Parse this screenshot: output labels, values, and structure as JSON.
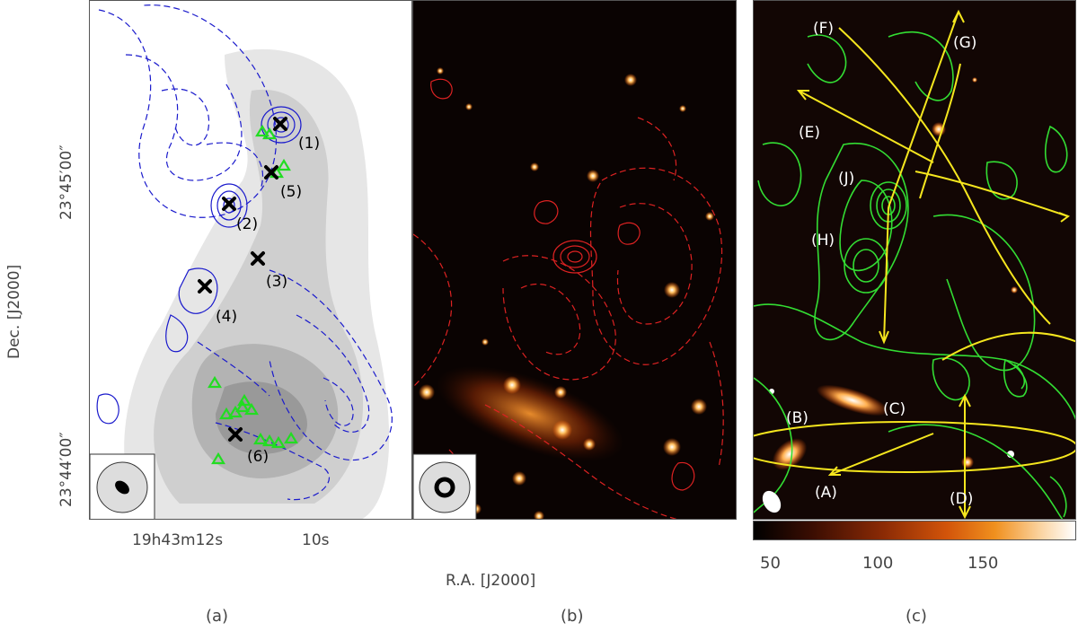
{
  "axes": {
    "ylabel": "Dec. [J2000]",
    "xlabel": "R.A. [J2000]",
    "dec_ticks": [
      "23°45′00″",
      "23°44′00″"
    ],
    "ra_ticks": [
      "19h43m12s",
      "10s"
    ]
  },
  "panel_a": {
    "markers": [
      "(1)",
      "(2)",
      "(3)",
      "(4)",
      "(5)",
      "(6)"
    ],
    "colors": {
      "contour": "#1a1acc",
      "marker": "#000000",
      "triangle": "#22dd22"
    }
  },
  "panel_b": {
    "colors": {
      "contour": "#dd2222"
    }
  },
  "panel_c": {
    "labels": [
      "(A)",
      "(B)",
      "(C)",
      "(D)",
      "(E)",
      "(F)",
      "(G)",
      "(H)",
      "(J)"
    ],
    "colors": {
      "contour": "#33dd33",
      "arrow": "#f5e61e"
    }
  },
  "colorbar": {
    "ticks": [
      "50",
      "100",
      "150"
    ]
  },
  "subfigure_labels": [
    "(a)",
    "(b)",
    "(c)"
  ]
}
